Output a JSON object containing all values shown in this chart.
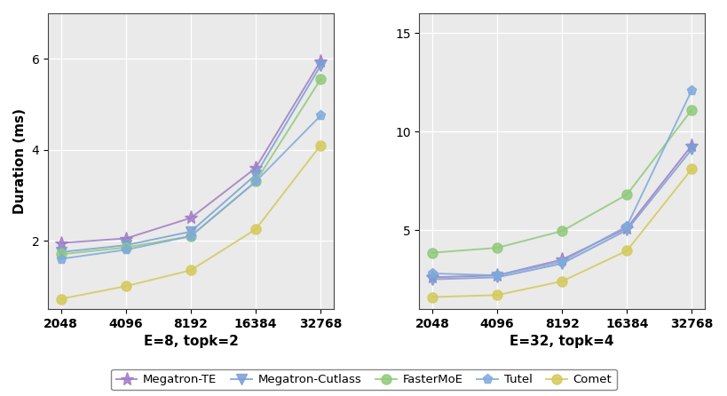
{
  "x_vals": [
    2048,
    4096,
    8192,
    16384,
    32768
  ],
  "x_labels": [
    "2048",
    "4096",
    "8192",
    "16384",
    "32768"
  ],
  "subplot1": {
    "xlabel": "E=8, topk=2",
    "ylim": [
      0.5,
      7
    ],
    "yticks": [
      2,
      4,
      6
    ],
    "series": {
      "Megatron-TE": [
        1.95,
        2.05,
        2.5,
        3.6,
        5.95
      ],
      "Megatron-Cutlass": [
        1.75,
        1.9,
        2.2,
        3.45,
        5.85
      ],
      "FasterMoE": [
        1.7,
        1.85,
        2.1,
        3.3,
        5.55
      ],
      "Tutel": [
        1.6,
        1.8,
        2.1,
        3.3,
        4.75
      ],
      "Comet": [
        0.72,
        1.0,
        1.35,
        2.25,
        4.1
      ]
    }
  },
  "subplot2": {
    "xlabel": "E=32, topk=4",
    "ylim": [
      1.0,
      16
    ],
    "yticks": [
      5,
      10,
      15
    ],
    "series": {
      "Megatron-TE": [
        2.6,
        2.7,
        3.5,
        5.1,
        9.3
      ],
      "Megatron-Cutlass": [
        2.5,
        2.6,
        3.3,
        5.0,
        9.1
      ],
      "FasterMoE": [
        3.85,
        4.1,
        4.95,
        6.8,
        11.1
      ],
      "Tutel": [
        2.8,
        2.7,
        3.4,
        5.2,
        12.1
      ],
      "Comet": [
        1.6,
        1.7,
        2.4,
        3.95,
        8.1
      ]
    }
  },
  "series_styles": {
    "Megatron-TE": {
      "color": "#a07cc5",
      "marker": "*",
      "markersize": 11,
      "linestyle": "-",
      "linewidth": 1.4
    },
    "Megatron-Cutlass": {
      "color": "#7b9fd4",
      "marker": "v",
      "markersize": 8,
      "linestyle": "-",
      "linewidth": 1.4
    },
    "FasterMoE": {
      "color": "#90c97a",
      "marker": "o",
      "markersize": 8,
      "linestyle": "-",
      "linewidth": 1.4
    },
    "Tutel": {
      "color": "#7eaadc",
      "marker": "p",
      "markersize": 8,
      "linestyle": "-",
      "linewidth": 1.4
    },
    "Comet": {
      "color": "#d4c95a",
      "marker": "o",
      "markersize": 8,
      "linestyle": "-",
      "linewidth": 1.4
    }
  },
  "ylabel": "Duration (ms)",
  "plot_bg_color": "#eaeaea",
  "fig_bg_color": "#ffffff",
  "grid_color": "#ffffff",
  "xlabel_fontsize": 11,
  "ylabel_fontsize": 11,
  "tick_fontsize": 10
}
